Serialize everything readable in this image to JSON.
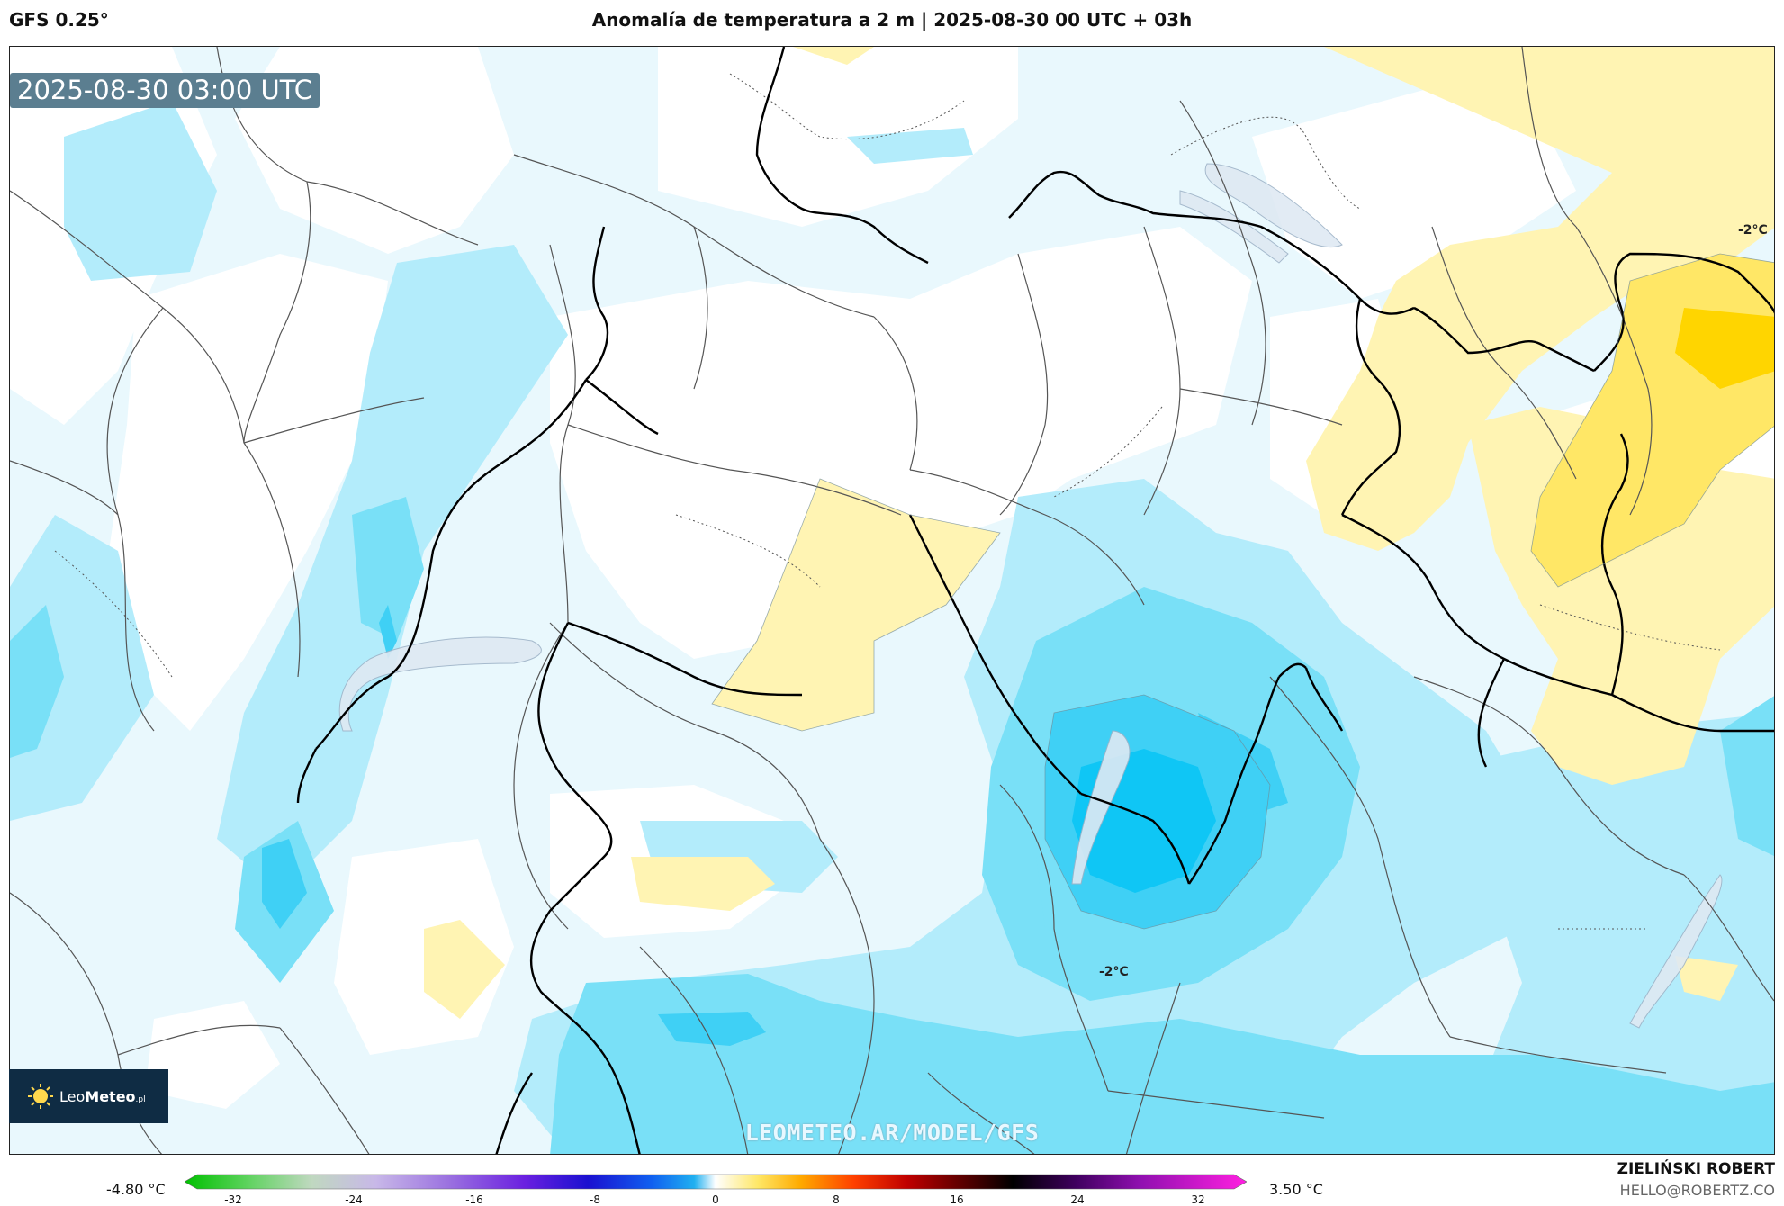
{
  "header": {
    "model": "GFS 0.25°",
    "title": "Anomalía de temperatura a 2 m | 2025-08-30 00 UTC + 03h"
  },
  "map": {
    "valid_time": "2025-08-30 03:00 UTC",
    "contour_labels": [
      "-2°C",
      "-2°C"
    ],
    "watermark": "LEOMETEO.AR/MODEL/GFS",
    "colors": {
      "light_blue": "#e9f8fd",
      "mid_blue": "#b3ecfb",
      "blue": "#79e0f7",
      "deep_blue": "#3fd0f5",
      "core_blue": "#0fc6f5",
      "pale_yellow": "#fff4b3",
      "yellow": "#ffe766",
      "gold": "#ffd500"
    }
  },
  "logo": {
    "name_light": "Leo",
    "name_bold": "Meteo",
    "suffix": ".pl",
    "icon": "sun-icon"
  },
  "colorbar": {
    "min_label": "-4.80 °C",
    "max_label": "3.50 °C",
    "ticks": [
      "-32",
      "-24",
      "-16",
      "-8",
      "0",
      "8",
      "16",
      "24",
      "32"
    ]
  },
  "credit": {
    "name": "ZIELIŃSKI ROBERT",
    "email": "HELLO@ROBERTZ.CO"
  }
}
